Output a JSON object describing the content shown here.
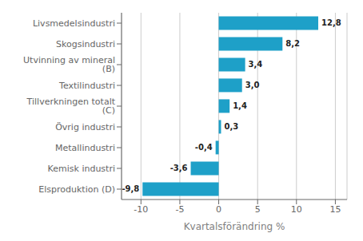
{
  "chart_data": {
    "type": "bar",
    "orientation": "horizontal",
    "categories": [
      "Elsproduktion (D)",
      "Kemisk industri",
      "Metallindustri",
      "Övrig industri",
      "Tillverkningen totalt (C)",
      "Textilindustri",
      "Utvinning av mineral (B)",
      "Skogsindustri",
      "Livsmedelsindustri"
    ],
    "values": [
      -9.8,
      -3.6,
      -0.4,
      0.3,
      1.4,
      3.0,
      3.4,
      8.2,
      12.8
    ],
    "value_labels": [
      "-9,8",
      "-3,6",
      "-0,4",
      "0,3",
      "1,4",
      "3,0",
      "3,4",
      "8,2",
      "12,8"
    ],
    "data_labels": true,
    "color": "#1ea0c8",
    "xlabel": "Kvartalsförändring %",
    "xlim": [
      -12.5,
      16.5
    ],
    "xticks": [
      -10,
      -5,
      0,
      5,
      10,
      15
    ],
    "grid": true
  }
}
